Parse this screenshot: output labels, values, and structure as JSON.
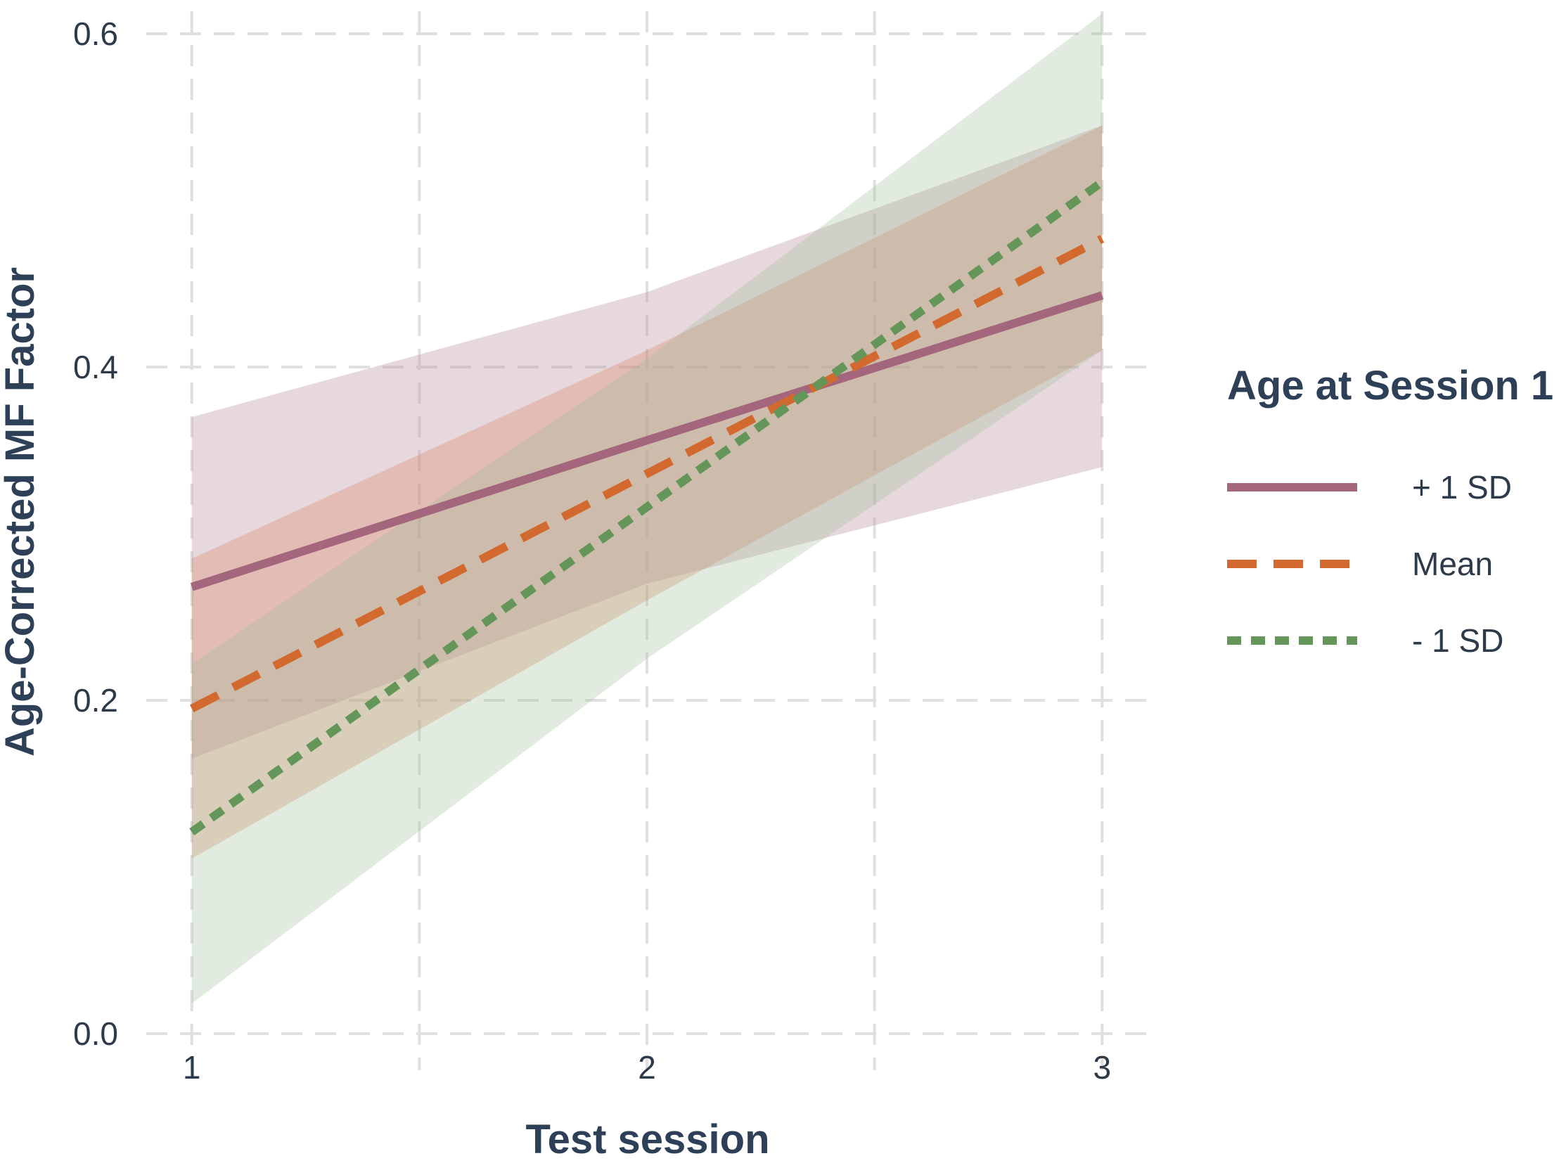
{
  "colors": {
    "plus_1sd": "#a4667c",
    "mean": "#d2692e",
    "minus_1sd": "#64965a",
    "band_plus_1sd": "#b98ea0",
    "band_mean": "#d98a6a",
    "band_minus_1sd": "#9bbd94",
    "grid": "#e0e0e0",
    "text": "#2e4057"
  },
  "chart_data": {
    "type": "line",
    "xlabel": "Test session",
    "ylabel": "Age-Corrected MF Factor",
    "xlim": [
      0.9,
      3.1
    ],
    "ylim": [
      0.0,
      0.6
    ],
    "x_ticks": [
      1,
      2,
      3
    ],
    "x_tick_labels": [
      "1",
      "2",
      "3"
    ],
    "y_ticks": [
      0.0,
      0.2,
      0.4,
      0.6
    ],
    "y_tick_labels": [
      "0.0",
      "0.2",
      "0.4",
      "0.6"
    ],
    "grid": true,
    "legend_position": "right",
    "legend_title": "Age at Session 1",
    "x": [
      1,
      2,
      3
    ],
    "series": [
      {
        "name": "+ 1 SD",
        "linestyle": "solid",
        "values": [
          0.268,
          0.356,
          0.443
        ],
        "ci_lower": [
          0.165,
          0.27,
          0.34
        ],
        "ci_upper": [
          0.37,
          0.445,
          0.545
        ]
      },
      {
        "name": "Mean",
        "linestyle": "dashed",
        "values": [
          0.195,
          0.336,
          0.477
        ],
        "ci_lower": [
          0.105,
          0.26,
          0.41
        ],
        "ci_upper": [
          0.285,
          0.41,
          0.545
        ]
      },
      {
        "name": "- 1 SD",
        "linestyle": "dotted",
        "values": [
          0.121,
          0.316,
          0.511
        ],
        "ci_lower": [
          0.018,
          0.225,
          0.41
        ],
        "ci_upper": [
          0.222,
          0.405,
          0.612
        ]
      }
    ]
  }
}
